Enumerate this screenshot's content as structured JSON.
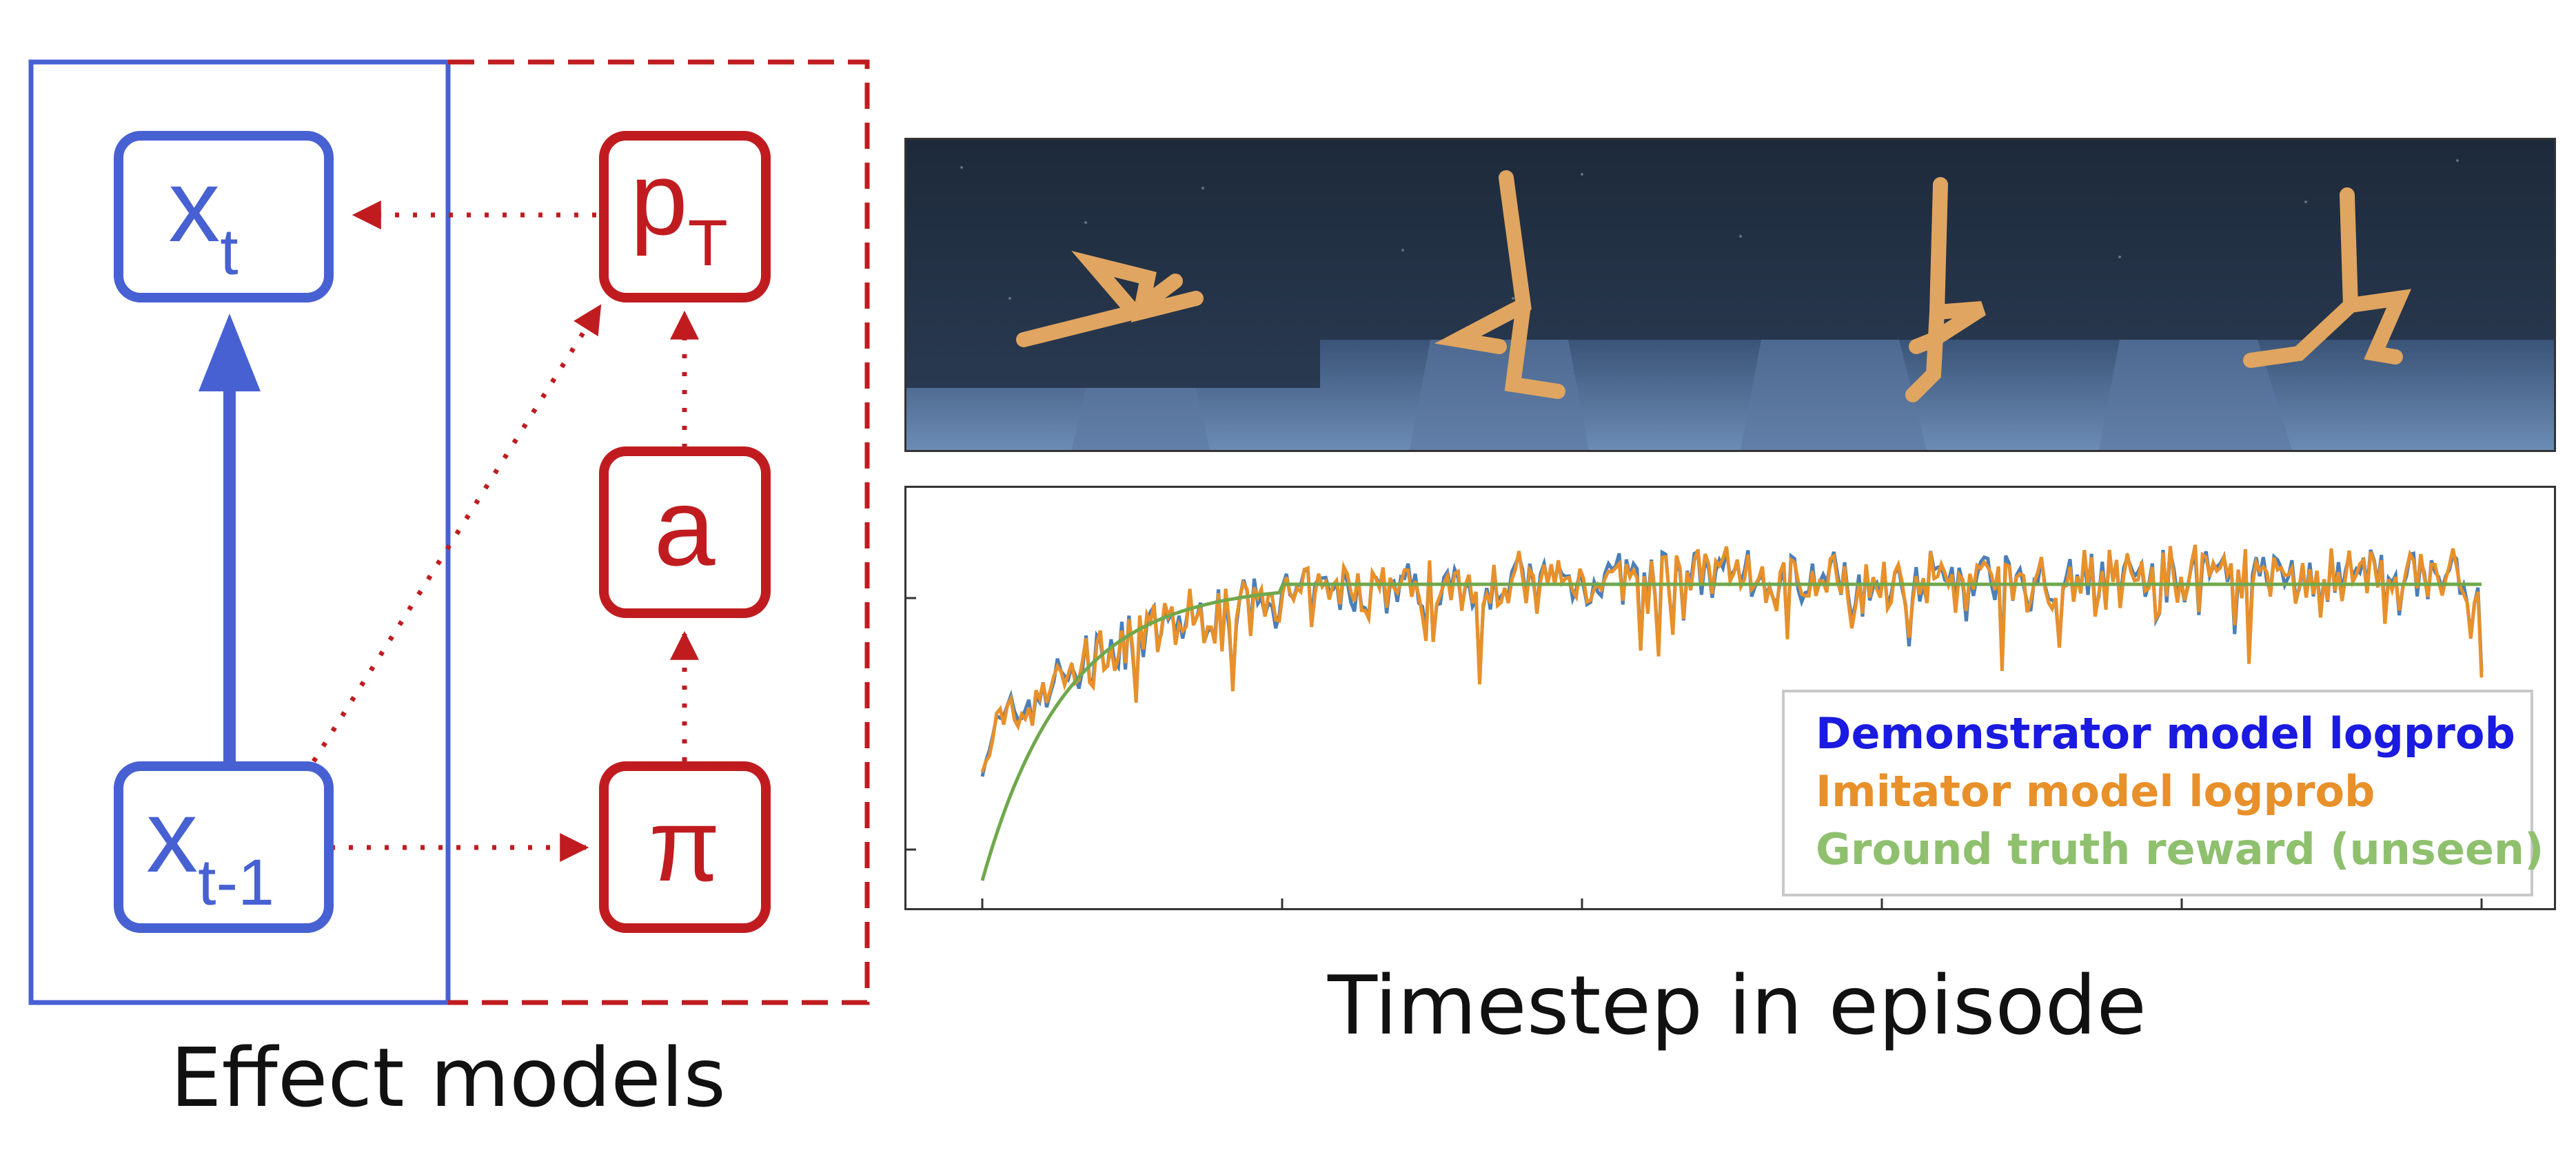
{
  "diagram": {
    "nodes": {
      "x_t": {
        "main": "x",
        "sub": "t"
      },
      "x_t1": {
        "main": "x",
        "sub": "t-1"
      },
      "p_T": {
        "main": "p",
        "sub": "T"
      },
      "a": {
        "main": "a"
      },
      "pi": {
        "main": "π"
      }
    },
    "caption": "Effect models",
    "colors": {
      "blue": "#4761d3",
      "red": "#c01c20"
    }
  },
  "scene": {
    "description_icon": "walker-robot-frames",
    "frames": 4
  },
  "chart_data": {
    "type": "line",
    "xlabel": "Timestep in episode",
    "ylabel": "",
    "grid": false,
    "legend_position": "bottom-right",
    "series": [
      {
        "name": "Demonstrator model logprob",
        "color": "#4a7fb8"
      },
      {
        "name": "Imitator model logprob",
        "color": "#e8902a"
      },
      {
        "name": "Ground truth reward (unseen)",
        "color": "#6fa84c"
      }
    ],
    "legend_label_colors": [
      "#1a1ae0",
      "#e8902a",
      "#8fc06e"
    ]
  }
}
